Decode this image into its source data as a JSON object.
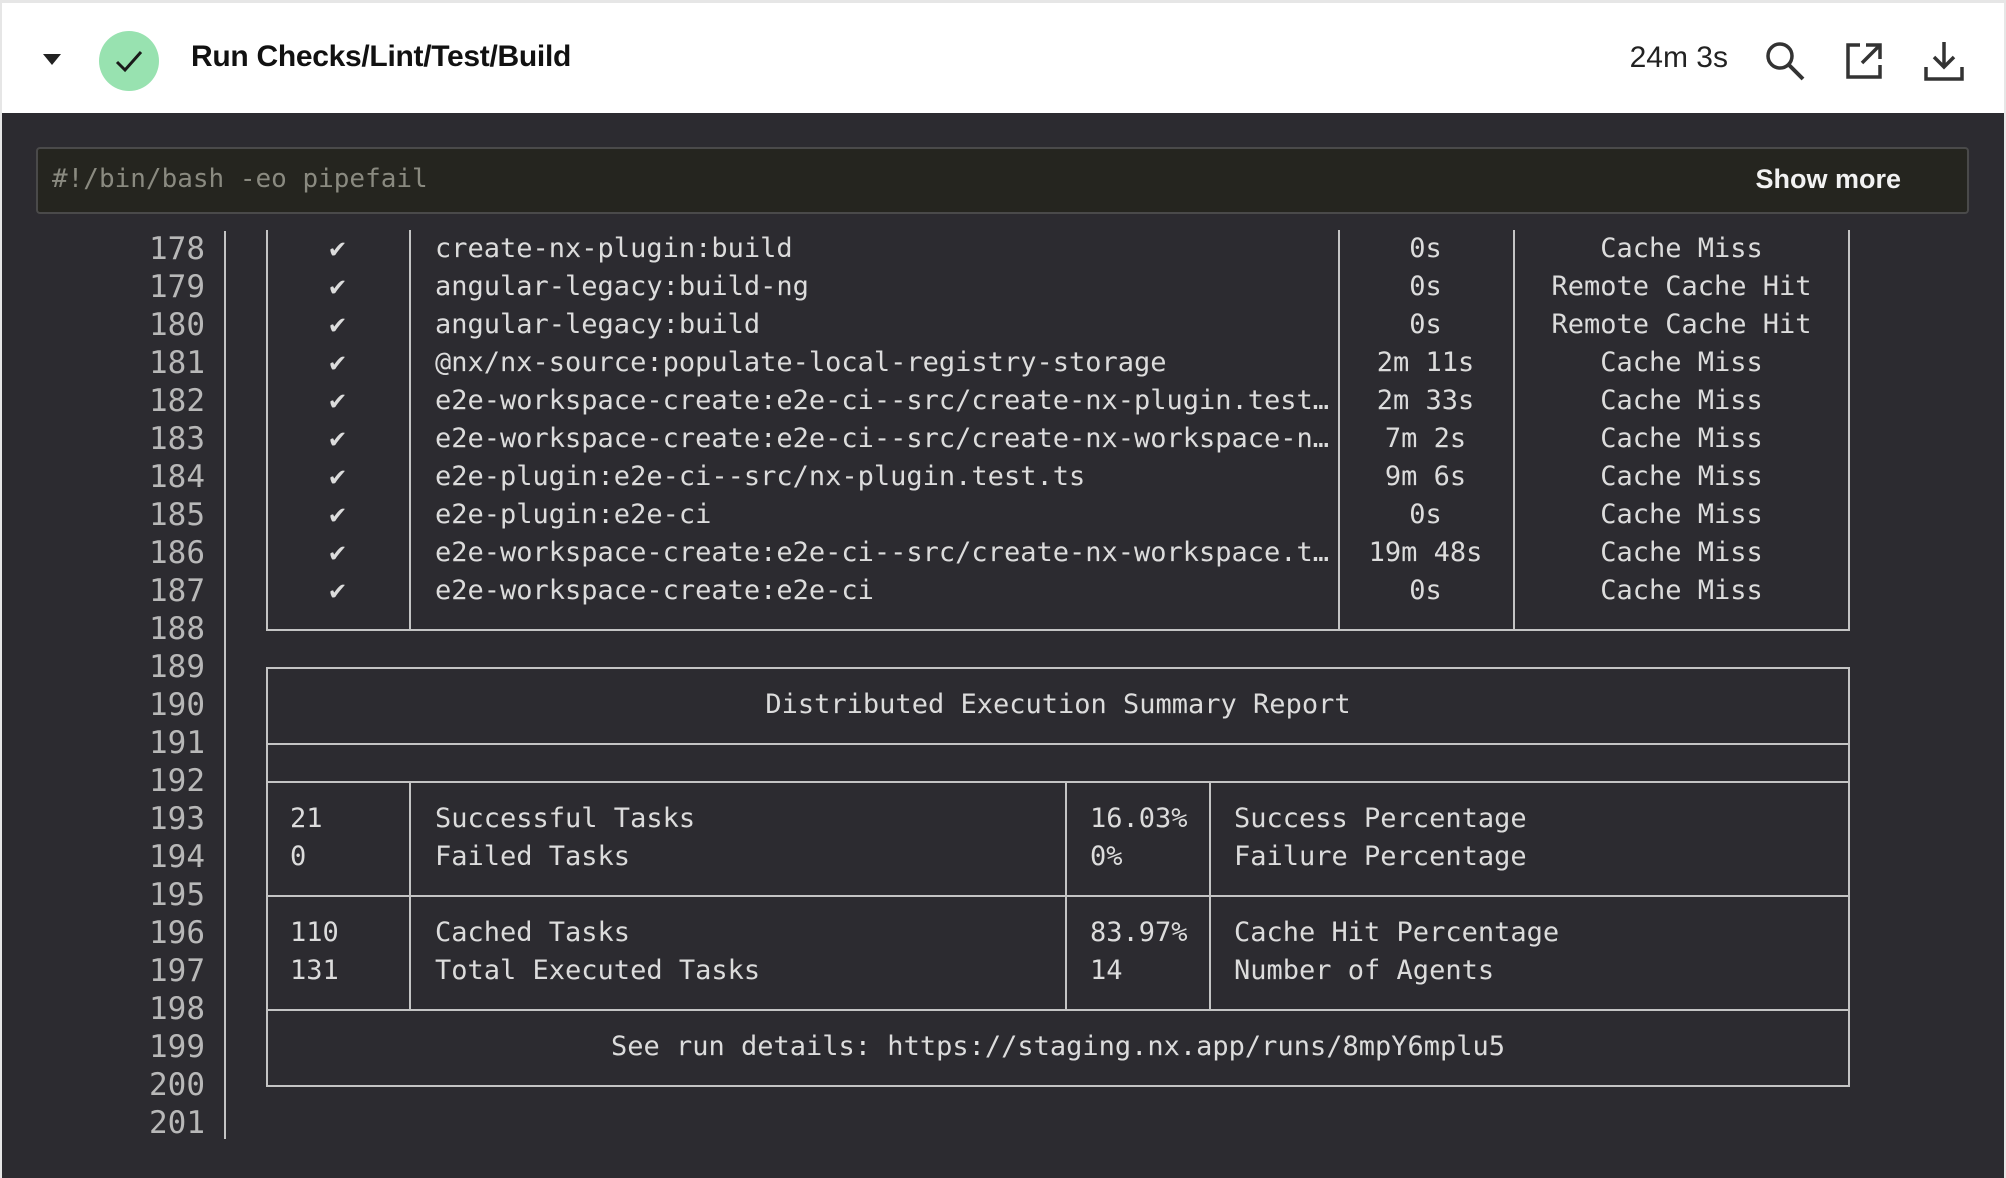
{
  "header": {
    "title": "Run Checks/Lint/Test/Build",
    "duration": "24m 3s",
    "status": "success",
    "status_color": "#98e2b0",
    "icons": [
      "chevron-down-icon",
      "check-icon",
      "search-icon",
      "external-link-icon",
      "download-icon"
    ]
  },
  "command": {
    "text": "#!/bin/bash -eo pipefail",
    "show_more_label": "Show more"
  },
  "log": {
    "line_numbers": [
      "178",
      "179",
      "180",
      "181",
      "182",
      "183",
      "184",
      "185",
      "186",
      "187",
      "188",
      "189",
      "190",
      "191",
      "192",
      "193",
      "194",
      "195",
      "196",
      "197",
      "198",
      "199",
      "200",
      "201"
    ],
    "tasks": [
      {
        "check": "✔",
        "name": "create-nx-plugin:build",
        "time": "0s",
        "cache": "Cache Miss"
      },
      {
        "check": "✔",
        "name": "angular-legacy:build-ng",
        "time": "0s",
        "cache": "Remote Cache Hit"
      },
      {
        "check": "✔",
        "name": "angular-legacy:build",
        "time": "0s",
        "cache": "Remote Cache Hit"
      },
      {
        "check": "✔",
        "name": "@nx/nx-source:populate-local-registry-storage",
        "time": "2m 11s",
        "cache": "Cache Miss"
      },
      {
        "check": "✔",
        "name": "e2e-workspace-create:e2e-ci--src/create-nx-plugin.test…",
        "time": "2m 33s",
        "cache": "Cache Miss"
      },
      {
        "check": "✔",
        "name": "e2e-workspace-create:e2e-ci--src/create-nx-workspace-n…",
        "time": "7m 2s",
        "cache": "Cache Miss"
      },
      {
        "check": "✔",
        "name": "e2e-plugin:e2e-ci--src/nx-plugin.test.ts",
        "time": "9m 6s",
        "cache": "Cache Miss"
      },
      {
        "check": "✔",
        "name": "e2e-plugin:e2e-ci",
        "time": "0s",
        "cache": "Cache Miss"
      },
      {
        "check": "✔",
        "name": "e2e-workspace-create:e2e-ci--src/create-nx-workspace.t…",
        "time": "19m 48s",
        "cache": "Cache Miss"
      },
      {
        "check": "✔",
        "name": "e2e-workspace-create:e2e-ci",
        "time": "0s",
        "cache": "Cache Miss"
      }
    ],
    "summary": {
      "title": "Distributed Execution Summary Report",
      "rows": [
        {
          "count": "21",
          "label": "Successful Tasks",
          "pct": "16.03%",
          "pct_label": "Success Percentage"
        },
        {
          "count": "0",
          "label": "Failed Tasks",
          "pct": "0%",
          "pct_label": "Failure Percentage"
        },
        {
          "count": "110",
          "label": "Cached Tasks",
          "pct": "83.97%",
          "pct_label": "Cache Hit Percentage"
        },
        {
          "count": "131",
          "label": "Total Executed Tasks",
          "pct": "14",
          "pct_label": "Number of Agents"
        }
      ],
      "details": "See run details: https://staging.nx.app/runs/8mpY6mplu5"
    }
  }
}
